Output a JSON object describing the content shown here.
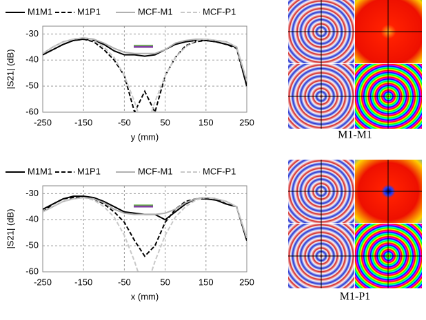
{
  "chart_data": [
    {
      "type": "line",
      "xlabel": "y (mm)",
      "ylabel": "|S21| (dB)",
      "x": [
        -250,
        -225,
        -200,
        -175,
        -150,
        -125,
        -100,
        -75,
        -50,
        -25,
        0,
        25,
        50,
        75,
        100,
        125,
        150,
        175,
        200,
        225,
        250
      ],
      "series": [
        {
          "name": "M1M1",
          "color": "#000000",
          "dash": "solid",
          "values": [
            -38,
            -36,
            -34,
            -32.5,
            -32,
            -32.5,
            -34,
            -36.5,
            -38,
            -38,
            -38.5,
            -38,
            -36,
            -34,
            -33,
            -32.5,
            -32.5,
            -33,
            -34,
            -35,
            -50
          ]
        },
        {
          "name": "M1P1",
          "color": "#000000",
          "dash": "dashed",
          "values": [
            -38,
            -36,
            -34,
            -32.5,
            -32,
            -33,
            -36,
            -40,
            -46,
            -60,
            -52,
            -60,
            -46,
            -39,
            -34.5,
            -33,
            -32.5,
            -33,
            -34,
            -35.5,
            -50
          ]
        },
        {
          "name": "MCF-M1",
          "color": "#b0b0b0",
          "dash": "solid",
          "values": [
            -37.5,
            -35,
            -33,
            -32,
            -31.5,
            -32,
            -33.5,
            -35.5,
            -37,
            -37.5,
            -37.5,
            -37.5,
            -36,
            -33.5,
            -32.5,
            -32,
            -32,
            -32.5,
            -33,
            -35,
            -48
          ]
        },
        {
          "name": "MCF-P1",
          "color": "#c8c8c8",
          "dash": "dashed",
          "values": [
            -37.5,
            -35,
            -33,
            -32,
            -31.5,
            -32.5,
            -35,
            -39,
            -46,
            -56,
            -68,
            -56,
            -46,
            -39,
            -35,
            -32.5,
            -32,
            -32.5,
            -33,
            -35,
            -48
          ]
        }
      ],
      "xlim": [
        -250,
        250
      ],
      "ylim": [
        -60,
        -27
      ],
      "xticks": [
        -250,
        -150,
        -50,
        50,
        150,
        250
      ],
      "yticks": [
        -30,
        -40,
        -50,
        -60
      ],
      "grid": true,
      "legend": "top"
    },
    {
      "type": "line",
      "xlabel": "x (mm)",
      "ylabel": "|S21| (dB)",
      "x": [
        -250,
        -225,
        -200,
        -175,
        -150,
        -125,
        -100,
        -75,
        -50,
        -25,
        0,
        25,
        50,
        75,
        100,
        125,
        150,
        175,
        200,
        225,
        250
      ],
      "series": [
        {
          "name": "M1M1",
          "color": "#000000",
          "dash": "solid",
          "values": [
            -36,
            -34,
            -32,
            -31,
            -31,
            -31.5,
            -33,
            -35,
            -37,
            -37.5,
            -38,
            -38,
            -40,
            -37,
            -34,
            -32,
            -32,
            -32.5,
            -34,
            -35,
            -48
          ]
        },
        {
          "name": "M1P1",
          "color": "#000000",
          "dash": "dashed",
          "values": [
            -37,
            -34,
            -32,
            -31.5,
            -31,
            -32,
            -34,
            -37,
            -41,
            -48,
            -54,
            -50,
            -41,
            -36,
            -33,
            -32,
            -31.5,
            -32,
            -34,
            -35,
            -48
          ]
        },
        {
          "name": "MCF-M1",
          "color": "#b0b0b0",
          "dash": "solid",
          "values": [
            -37,
            -35,
            -33,
            -32,
            -31.5,
            -32,
            -33.5,
            -36,
            -37.5,
            -38,
            -38,
            -38,
            -37.5,
            -36,
            -33.5,
            -32,
            -31.5,
            -32,
            -33,
            -35,
            -47
          ]
        },
        {
          "name": "MCF-P1",
          "color": "#c8c8c8",
          "dash": "dashed",
          "values": [
            -37,
            -35,
            -33,
            -32,
            -31.5,
            -32.5,
            -35,
            -39,
            -46,
            -56,
            -68,
            -56,
            -46,
            -39,
            -35,
            -32.5,
            -31.5,
            -32,
            -33,
            -35,
            -47
          ]
        }
      ],
      "xlim": [
        -250,
        250
      ],
      "ylim": [
        -60,
        -27
      ],
      "xticks": [
        -250,
        -150,
        -50,
        50,
        150,
        250
      ],
      "yticks": [
        -30,
        -40,
        -50,
        -60
      ],
      "grid": true,
      "legend": "top"
    }
  ],
  "image_captions": [
    "M1-M1",
    "M1-P1"
  ]
}
